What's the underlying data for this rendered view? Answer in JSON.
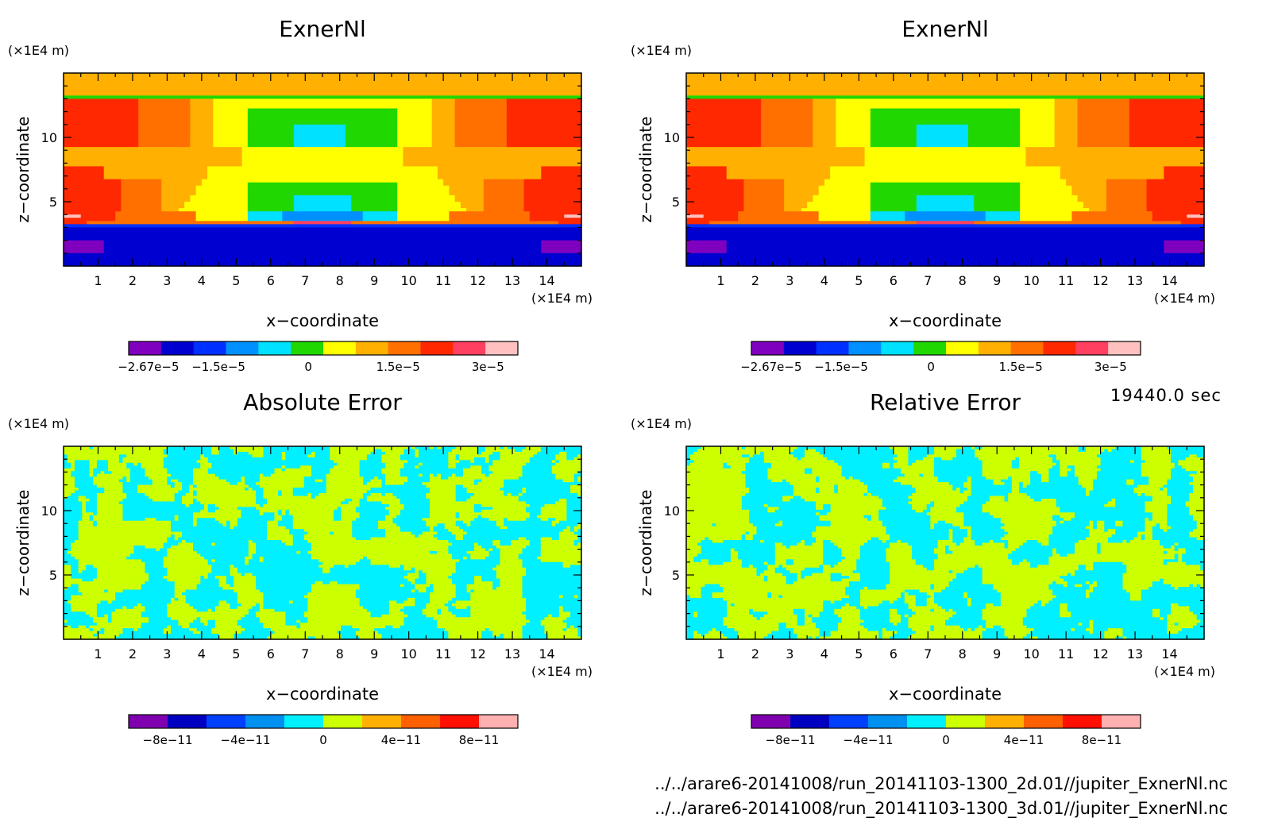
{
  "time_label": "19440.0 sec",
  "files": [
    "../../arare6-20141008/run_20141103-1300_2d.01//jupiter_ExnerNl.nc",
    "../../arare6-20141008/run_20141103-1300_3d.01//jupiter_ExnerNl.nc"
  ],
  "colors": {
    "field_levels": [
      "#7f00bf",
      "#0000d0",
      "#0030ff",
      "#0090ff",
      "#00e0ff",
      "#20d800",
      "#ffff00",
      "#ffb000",
      "#ff7000",
      "#ff2800",
      "#ff4060",
      "#ffc0c0"
    ],
    "error_levels": [
      "#8000b0",
      "#0000c0",
      "#0040ff",
      "#0090f0",
      "#00f0ff",
      "#ccff00",
      "#ffb000",
      "#ff6000",
      "#ff1000",
      "#ffb0b0"
    ]
  },
  "chart_data": [
    {
      "type": "heatmap",
      "title": "ExnerNl",
      "xlabel": "x−coordinate",
      "ylabel": "z−coordinate",
      "x_unit": "(×1E4 m)",
      "y_unit": "(×1E4 m)",
      "xlim": [
        0,
        15
      ],
      "ylim": [
        0,
        15
      ],
      "x_ticks": [
        "1",
        "2",
        "3",
        "4",
        "5",
        "6",
        "7",
        "8",
        "9",
        "10",
        "11",
        "12",
        "13",
        "14"
      ],
      "y_ticks": [
        "5",
        "10"
      ],
      "colorbar_ticks": [
        "−2.67e−5",
        "−1.5e−5",
        "0",
        "1.5e−5",
        "3e−5"
      ],
      "colorbar_range": [
        -3e-05,
        3.5e-05
      ]
    },
    {
      "type": "heatmap",
      "title": "ExnerNl",
      "xlabel": "x−coordinate",
      "ylabel": "z−coordinate",
      "x_unit": "(×1E4 m)",
      "y_unit": "(×1E4 m)",
      "xlim": [
        0,
        15
      ],
      "ylim": [
        0,
        15
      ],
      "x_ticks": [
        "1",
        "2",
        "3",
        "4",
        "5",
        "6",
        "7",
        "8",
        "9",
        "10",
        "11",
        "12",
        "13",
        "14"
      ],
      "y_ticks": [
        "5",
        "10"
      ],
      "colorbar_ticks": [
        "−2.67e−5",
        "−1.5e−5",
        "0",
        "1.5e−5",
        "3e−5"
      ],
      "colorbar_range": [
        -3e-05,
        3.5e-05
      ]
    },
    {
      "type": "heatmap",
      "title": "Absolute Error",
      "xlabel": "x−coordinate",
      "ylabel": "z−coordinate",
      "x_unit": "(×1E4 m)",
      "y_unit": "(×1E4 m)",
      "xlim": [
        0,
        15
      ],
      "ylim": [
        0,
        15
      ],
      "x_ticks": [
        "1",
        "2",
        "3",
        "4",
        "5",
        "6",
        "7",
        "8",
        "9",
        "10",
        "11",
        "12",
        "13",
        "14"
      ],
      "y_ticks": [
        "5",
        "10"
      ],
      "colorbar_ticks": [
        "−8e−11",
        "−4e−11",
        "0",
        "4e−11",
        "8e−11"
      ],
      "colorbar_range": [
        -1e-10,
        1e-10
      ]
    },
    {
      "type": "heatmap",
      "title": "Relative Error",
      "xlabel": "x−coordinate",
      "ylabel": "z−coordinate",
      "x_unit": "(×1E4 m)",
      "y_unit": "(×1E4 m)",
      "xlim": [
        0,
        15
      ],
      "ylim": [
        0,
        15
      ],
      "x_ticks": [
        "1",
        "2",
        "3",
        "4",
        "5",
        "6",
        "7",
        "8",
        "9",
        "10",
        "11",
        "12",
        "13",
        "14"
      ],
      "y_ticks": [
        "5",
        "10"
      ],
      "colorbar_ticks": [
        "−8e−11",
        "−4e−11",
        "0",
        "4e−11",
        "8e−11"
      ],
      "colorbar_range": [
        -1e-10,
        1e-10
      ]
    }
  ]
}
